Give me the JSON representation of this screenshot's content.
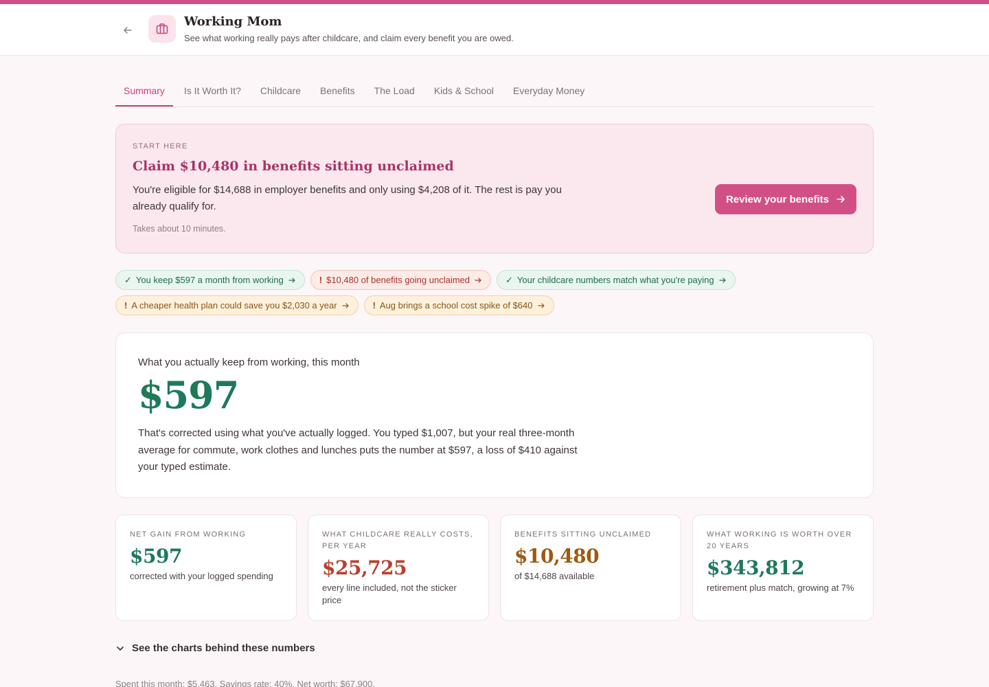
{
  "colors": {
    "accent": "#d24f86",
    "positive": "#1e7a58",
    "negative": "#b8412e",
    "warning": "#9c5a12"
  },
  "header": {
    "title": "Working Mom",
    "subtitle": "See what working really pays after childcare, and claim every benefit you are owed.",
    "back_icon": "arrow-left-icon",
    "app_icon": "briefcase-icon"
  },
  "tabs": [
    {
      "label": "Summary",
      "active": true
    },
    {
      "label": "Is It Worth It?"
    },
    {
      "label": "Childcare"
    },
    {
      "label": "Benefits"
    },
    {
      "label": "The Load"
    },
    {
      "label": "Kids & School"
    },
    {
      "label": "Everyday Money"
    }
  ],
  "hero": {
    "eyebrow": "START HERE",
    "title": "Claim $10,480 in benefits sitting unclaimed",
    "body": "You're eligible for $14,688 in employer benefits and only using $4,208 of it. The rest is pay you already qualify for.",
    "note": "Takes about 10 minutes.",
    "cta": "Review your benefits"
  },
  "chips": [
    {
      "kind": "good",
      "mark": "✓",
      "text": "You keep $597 a month from working"
    },
    {
      "kind": "bad",
      "mark": "!",
      "text": "$10,480 of benefits going unclaimed"
    },
    {
      "kind": "good",
      "mark": "✓",
      "text": "Your childcare numbers match what you're paying"
    },
    {
      "kind": "warn",
      "mark": "!",
      "text": "A cheaper health plan could save you $2,030 a year"
    },
    {
      "kind": "warn",
      "mark": "!",
      "text": "Aug brings a school cost spike of $640"
    }
  ],
  "keep": {
    "label": "What you actually keep from working, this month",
    "value": "$597",
    "body": "That's corrected using what you've actually logged. You typed $1,007, but your real three-month average for commute, work clothes and lunches puts the number at $597, a loss of $410 against your typed estimate."
  },
  "stats": [
    {
      "label": "Net gain from working",
      "value": "$597",
      "note": "corrected with your logged spending",
      "color": "#1e7a58"
    },
    {
      "label": "What childcare really costs, per year",
      "value": "$25,725",
      "note": "every line included, not the sticker price",
      "color": "#b8412e"
    },
    {
      "label": "Benefits sitting unclaimed",
      "value": "$10,480",
      "note": "of $14,688 available",
      "color": "#9c5a12"
    },
    {
      "label": "What working is worth over 20 years",
      "value": "$343,812",
      "note": "retirement plus match, growing at 7%",
      "color": "#1e7a58"
    }
  ],
  "charts_toggle": "See the charts behind these numbers",
  "footer": "Spent this month: $5,463. Savings rate: 40%. Net worth: $67,900."
}
